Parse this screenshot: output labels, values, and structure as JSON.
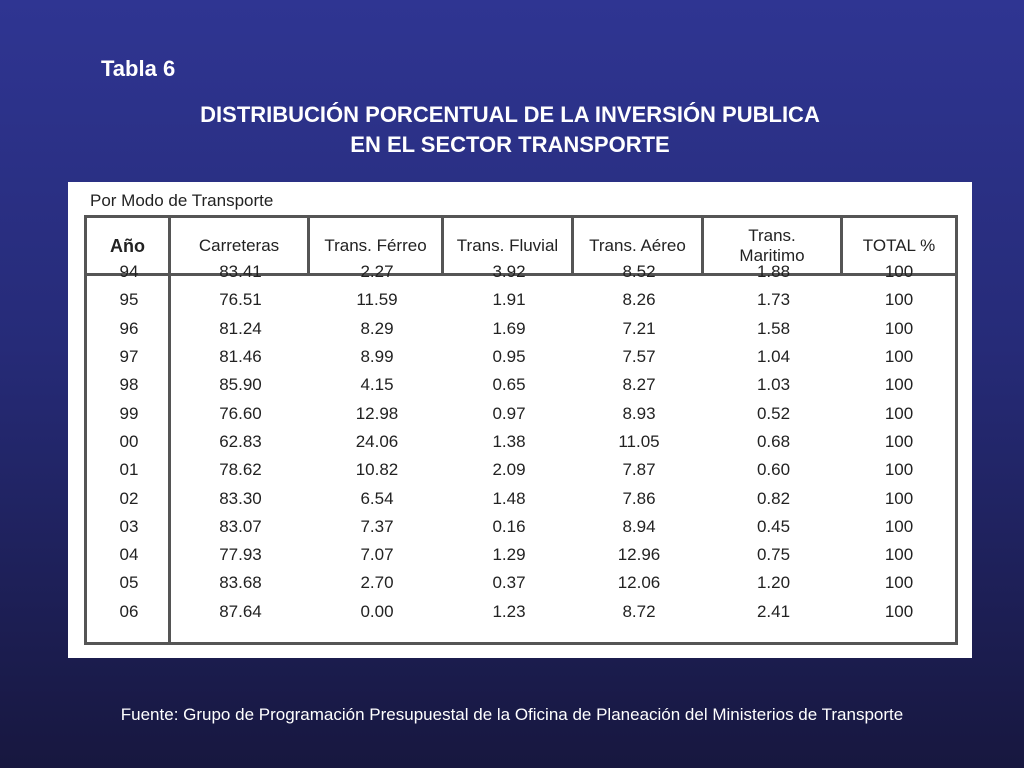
{
  "slide": {
    "label": "Tabla 6",
    "title_line1": "DISTRIBUCIÓN PORCENTUAL DE LA INVERSIÓN PUBLICA",
    "title_line2": "EN EL SECTOR TRANSPORTE",
    "source": "Fuente: Grupo de Programación Presupuestal de la Oficina de Planeación del Ministerios de Transporte"
  },
  "table": {
    "subtitle": "Por Modo de Transporte",
    "headers": [
      "Año",
      "Carreteras",
      "Trans. Férreo",
      "Trans. Fluvial",
      "Trans. Aéreo",
      "Trans. Maritimo",
      "TOTAL %"
    ],
    "rows": [
      [
        "94",
        "83.41",
        "2.27",
        "3.92",
        "8.52",
        "1.88",
        "100"
      ],
      [
        "95",
        "76.51",
        "11.59",
        "1.91",
        "8.26",
        "1.73",
        "100"
      ],
      [
        "96",
        "81.24",
        "8.29",
        "1.69",
        "7.21",
        "1.58",
        "100"
      ],
      [
        "97",
        "81.46",
        "8.99",
        "0.95",
        "7.57",
        "1.04",
        "100"
      ],
      [
        "98",
        "85.90",
        "4.15",
        "0.65",
        "8.27",
        "1.03",
        "100"
      ],
      [
        "99",
        "76.60",
        "12.98",
        "0.97",
        "8.93",
        "0.52",
        "100"
      ],
      [
        "00",
        "62.83",
        "24.06",
        "1.38",
        "11.05",
        "0.68",
        "100"
      ],
      [
        "01",
        "78.62",
        "10.82",
        "2.09",
        "7.87",
        "0.60",
        "100"
      ],
      [
        "02",
        "83.30",
        "6.54",
        "1.48",
        "7.86",
        "0.82",
        "100"
      ],
      [
        "03",
        "83.07",
        "7.37",
        "0.16",
        "8.94",
        "0.45",
        "100"
      ],
      [
        "04",
        "77.93",
        "7.07",
        "1.29",
        "12.96",
        "0.75",
        "100"
      ],
      [
        "05",
        "83.68",
        "2.70",
        "0.37",
        "12.06",
        "1.20",
        "100"
      ],
      [
        "06",
        "87.64",
        "0.00",
        "1.23",
        "8.72",
        "2.41",
        "100"
      ]
    ]
  }
}
